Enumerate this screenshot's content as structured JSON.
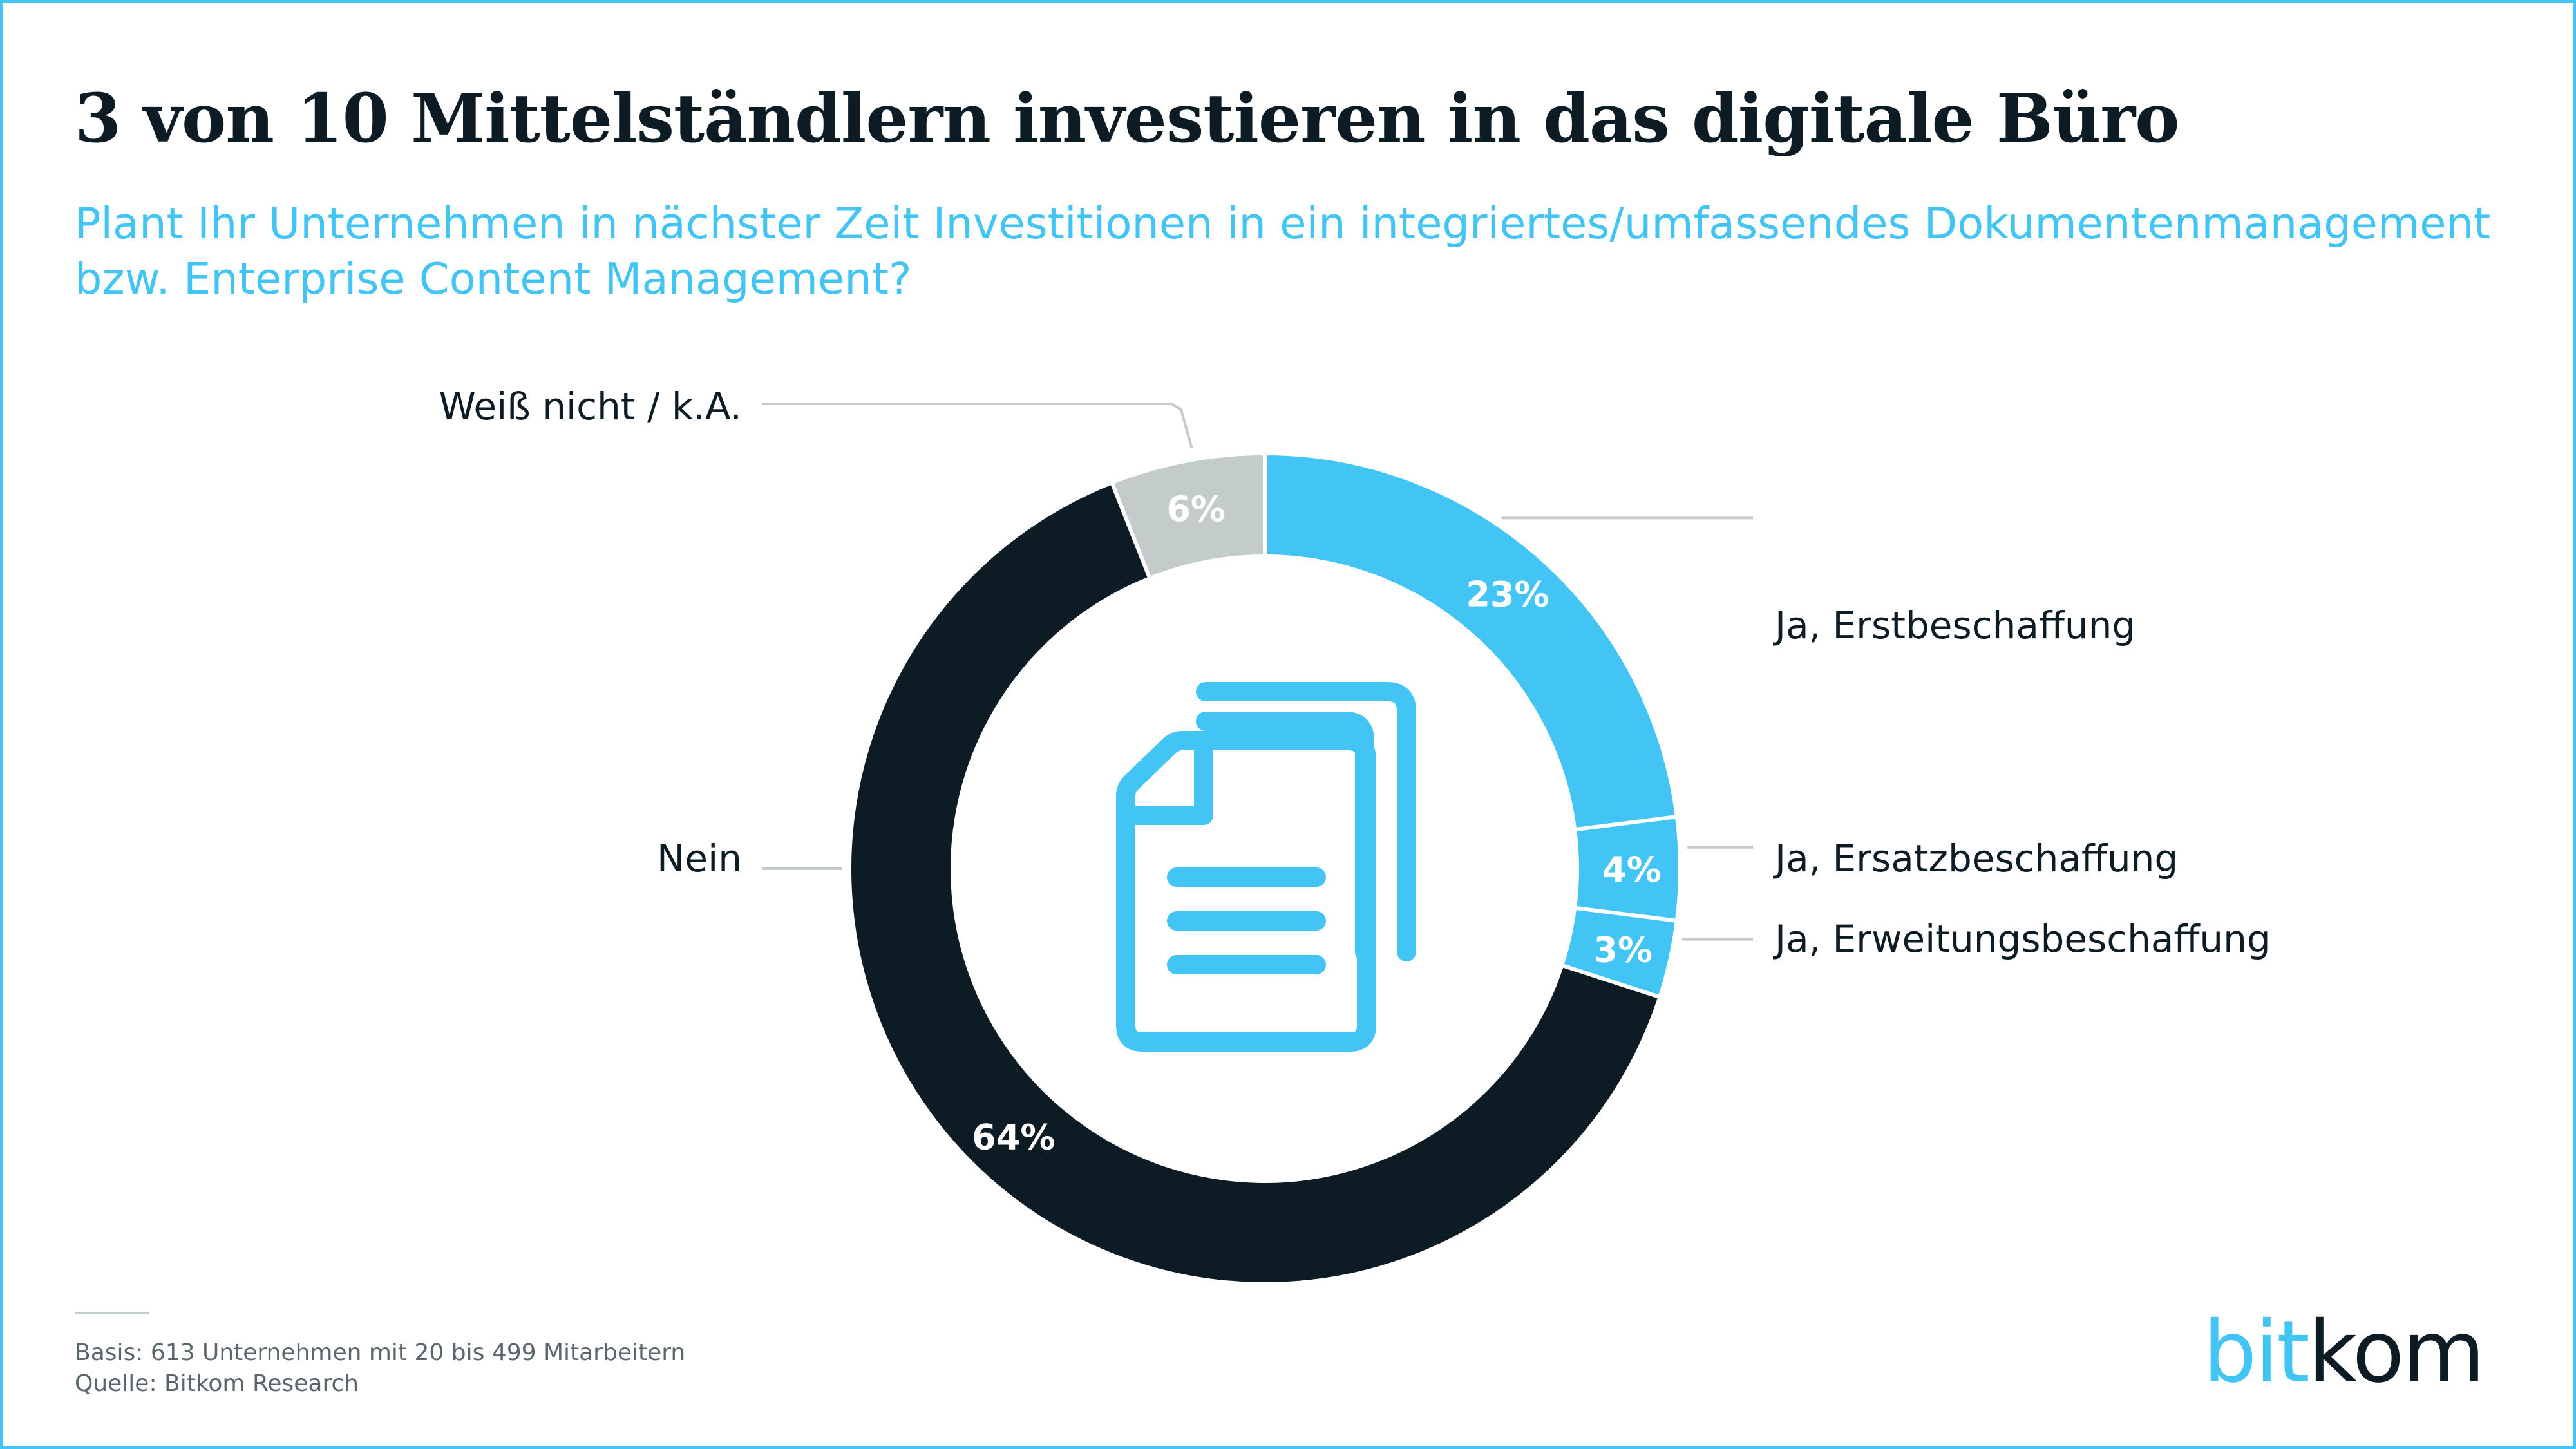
{
  "header": {
    "title": "3 von 10 Mittelständlern investieren in das digitale Büro",
    "subtitle": "Plant Ihr Unternehmen in nächster Zeit Investitionen in ein integriertes/umfassendes Dokumentenmanagement bzw. Enterprise Content Management?"
  },
  "chart_data": {
    "type": "pie",
    "style": "donut",
    "slices": [
      {
        "label": "Ja, Erstbeschaffung",
        "value": 23,
        "value_label": "23%",
        "color": "#42c4f5",
        "label_color": "#ffffff"
      },
      {
        "label": "Ja, Ersatzbeschaffung",
        "value": 4,
        "value_label": "4%",
        "color": "#42c4f5",
        "label_color": "#ffffff"
      },
      {
        "label": "Ja, Erweitungsbeschaffung",
        "value": 3,
        "value_label": "3%",
        "color": "#42c4f5",
        "label_color": "#ffffff"
      },
      {
        "label": "Nein",
        "value": 64,
        "value_label": "64%",
        "color": "#0d1c24",
        "label_color": "#ffffff"
      },
      {
        "label": "Weiß nicht / k.A.",
        "value": 6,
        "value_label": "6%",
        "color": "#c4cccb",
        "label_color": "#ffffff"
      }
    ],
    "center_icon": "document-stack-icon",
    "icon_color": "#42c4f5"
  },
  "footer": {
    "basis": "Basis: 613 Unternehmen mit 20 bis 499 Mitarbeitern",
    "source": "Quelle: Bitkom Research",
    "logo_part1": "bit",
    "logo_part2": "kom"
  }
}
